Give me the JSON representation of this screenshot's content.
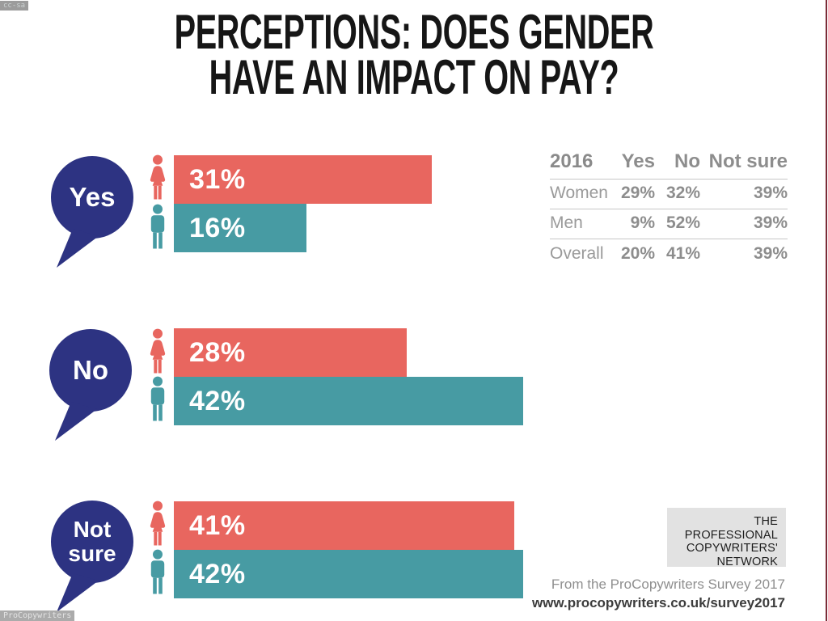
{
  "title": {
    "line1": "PERCEPTIONS: DOES GENDER",
    "line2": "HAVE AN IMPACT ON PAY?"
  },
  "chart_data": [
    {
      "type": "bar",
      "orientation": "horizontal",
      "title": "Perceptions: does gender have an impact on pay?",
      "categories": [
        "Yes",
        "No",
        "Not sure"
      ],
      "series": [
        {
          "name": "Women",
          "color": "#e8665f",
          "values": [
            31,
            28,
            41
          ]
        },
        {
          "name": "Men",
          "color": "#479ba3",
          "values": [
            16,
            42,
            42
          ]
        }
      ],
      "unit": "%",
      "xlim": [
        0,
        45
      ],
      "grid": false,
      "legend": "person icons (woman = coral, man = teal)"
    },
    {
      "type": "table",
      "title": "2016",
      "columns": [
        "Yes",
        "No",
        "Not sure"
      ],
      "rows": [
        {
          "label": "Women",
          "values": [
            29,
            32,
            39
          ]
        },
        {
          "label": "Men",
          "values": [
            9,
            52,
            39
          ]
        },
        {
          "label": "Overall",
          "values": [
            20,
            41,
            39
          ]
        }
      ],
      "unit": "%"
    }
  ],
  "groups": [
    {
      "bubble_label": "Yes",
      "women_label": "31%",
      "men_label": "16%"
    },
    {
      "bubble_label": "No",
      "women_label": "28%",
      "men_label": "42%"
    },
    {
      "bubble_label": "Not\nsure",
      "women_label": "41%",
      "men_label": "42%"
    }
  ],
  "table": {
    "headers": [
      "2016",
      "Yes",
      "No",
      "Not sure"
    ],
    "rows": [
      {
        "label": "Women",
        "values": [
          "29%",
          "32%",
          "39%"
        ]
      },
      {
        "label": "Men",
        "values": [
          "9%",
          "52%",
          "39%"
        ]
      },
      {
        "label": "Overall",
        "values": [
          "20%",
          "41%",
          "39%"
        ]
      }
    ]
  },
  "logo": {
    "lines": [
      "THE",
      "PROFESSIONAL",
      "COPYWRITERS'",
      "NETWORK"
    ]
  },
  "credits": {
    "source": "From the ProCopywriters Survey 2017",
    "url": "www.procopywriters.co.uk/survey2017"
  },
  "watermarks": {
    "top_left": "cc-sa",
    "bottom_left": "ProCopywriters"
  },
  "colors": {
    "navy": "#2d3382",
    "coral": "#e8665f",
    "teal": "#479ba3",
    "maroon": "#7b2c38",
    "logo-bg": "#e2e2e2",
    "ink": "#161616",
    "grey-head": "#8a8a8a",
    "grey-num": "#8d8d8d",
    "grey-label": "#9a9a9a",
    "line": "#c6c6c6"
  }
}
